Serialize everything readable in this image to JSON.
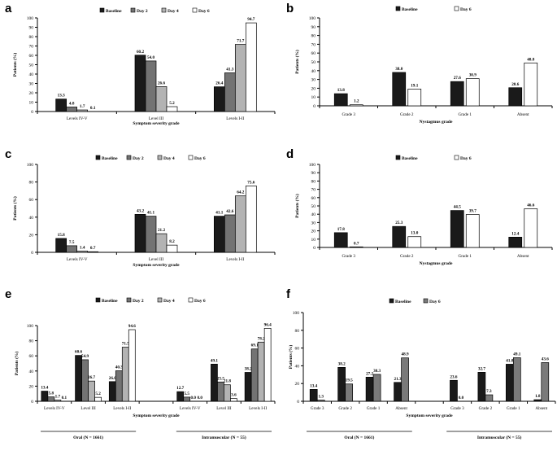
{
  "panels": {
    "a": {
      "label": "a"
    },
    "b": {
      "label": "b"
    },
    "c": {
      "label": "c"
    },
    "d": {
      "label": "d"
    },
    "e": {
      "label": "e"
    },
    "f": {
      "label": "f"
    }
  },
  "colors": {
    "baseline": "#1a1a1a",
    "day2": "#737373",
    "day4": "#b3b3b3",
    "day6": "#ffffff",
    "day6_f": "#7a7a7a"
  },
  "chart_data": [
    {
      "id": "a",
      "type": "bar",
      "ylabel": "Patients (%)",
      "xlabel": "Symptom severity grade",
      "ylim": [
        0,
        100
      ],
      "yticks": [
        0,
        10,
        20,
        30,
        40,
        50,
        60,
        70,
        80,
        90,
        100
      ],
      "legend": [
        "Baseline",
        "Day 2",
        "Day 4",
        "Day 6"
      ],
      "categories": [
        "Levels IV-V",
        "Level III",
        "Levels I-II"
      ],
      "series": [
        {
          "name": "Baseline",
          "values": [
            13.3,
            60.2,
            26.4
          ]
        },
        {
          "name": "Day 2",
          "values": [
            4.8,
            54.0,
            41.3
          ]
        },
        {
          "name": "Day 4",
          "values": [
            1.7,
            26.6,
            71.7
          ]
        },
        {
          "name": "Day 6",
          "values": [
            0.1,
            5.2,
            94.7
          ]
        }
      ]
    },
    {
      "id": "b",
      "type": "bar",
      "ylabel": "Patients (%)",
      "xlabel": "Nystagmus grade",
      "ylim": [
        0,
        100
      ],
      "yticks": [
        0,
        10,
        20,
        30,
        40,
        50,
        60,
        70,
        80,
        90,
        100
      ],
      "legend": [
        "Baseline",
        "Day 6"
      ],
      "categories": [
        "Grade 3",
        "Grade 2",
        "Grade 1",
        "Absent"
      ],
      "series": [
        {
          "name": "Baseline",
          "values": [
            13.8,
            38.0,
            27.6,
            20.6
          ]
        },
        {
          "name": "Day 6",
          "values": [
            1.2,
            19.1,
            30.9,
            48.8
          ]
        }
      ]
    },
    {
      "id": "c",
      "type": "bar",
      "ylabel": "Patients (%)",
      "xlabel": "Symptom severity grade",
      "ylim": [
        0,
        100
      ],
      "yticks": [
        0,
        20,
        40,
        60,
        80,
        100
      ],
      "legend": [
        "Baseline",
        "Day 2",
        "Day 4",
        "Day 6"
      ],
      "categories": [
        "Levels IV-V",
        "Level III",
        "Levels I-II"
      ],
      "series": [
        {
          "name": "Baseline",
          "values": [
            15.8,
            43.2,
            41.1
          ]
        },
        {
          "name": "Day 2",
          "values": [
            7.5,
            41.1,
            42.6
          ]
        },
        {
          "name": "Day 4",
          "values": [
            1.4,
            21.2,
            64.2
          ]
        },
        {
          "name": "Day 6",
          "values": [
            0.7,
            8.2,
            75.6
          ]
        }
      ]
    },
    {
      "id": "d",
      "type": "bar",
      "ylabel": "Patients (%)",
      "xlabel": "Nystagmus grade",
      "ylim": [
        0,
        100
      ],
      "yticks": [
        0,
        10,
        20,
        30,
        40,
        50,
        60,
        70,
        80,
        90,
        100
      ],
      "legend": [
        "Baseline",
        "Day 6"
      ],
      "categories": [
        "Grade 3",
        "Grade 2",
        "Grade 1",
        "Absent"
      ],
      "series": [
        {
          "name": "Baseline",
          "values": [
            17.8,
            25.3,
            44.5,
            12.4
          ]
        },
        {
          "name": "Day 6",
          "values": [
            0.7,
            13.0,
            39.7,
            46.6
          ]
        }
      ]
    },
    {
      "id": "e",
      "type": "bar",
      "ylabel": "Patients (%)",
      "xlabel": "Symptom severity grade",
      "ylim": [
        0,
        100
      ],
      "yticks": [
        0,
        20,
        40,
        60,
        80,
        100
      ],
      "legend": [
        "Baseline",
        "Day 2",
        "Day 4",
        "Day 6"
      ],
      "categories": [
        "Levels IV-V",
        "Level III",
        "Levels I-II",
        "Levels IV-V",
        "Level III",
        "Levels I-II"
      ],
      "groups": [
        "Oral (N = 1661)",
        "Intramuscular (N = 55)"
      ],
      "series": [
        {
          "name": "Baseline",
          "values": [
            13.4,
            60.6,
            26.0,
            12.7,
            49.1,
            38.2
          ]
        },
        {
          "name": "Day 2",
          "values": [
            5.8,
            54.9,
            40.3,
            5.5,
            25.5,
            69.1
          ]
        },
        {
          "name": "Day 4",
          "values": [
            1.7,
            26.7,
            71.5,
            0.0,
            21.8,
            78.2
          ]
        },
        {
          "name": "Day 6",
          "values": [
            0.1,
            5.2,
            94.6,
            0.0,
            3.6,
            96.4
          ]
        }
      ],
      "value_labels": [
        [
          "13.4",
          "60.6",
          "26.0",
          "12.7",
          "49.1",
          "38.2"
        ],
        [
          "5.8",
          "54.9",
          "40.3",
          "5.5",
          "25.5",
          "69.1"
        ],
        [
          "1.7",
          "26.7",
          "71.5",
          "0.0",
          "21.8",
          "78.2"
        ],
        [
          "0.1",
          "5.2",
          "94.6",
          "0.0",
          "3.6",
          "96.4"
        ]
      ]
    },
    {
      "id": "f",
      "type": "bar",
      "ylabel": "Patients (%)",
      "xlabel": "Symptom severity grade",
      "ylim": [
        0,
        100
      ],
      "yticks": [
        0,
        20,
        40,
        60,
        80,
        100
      ],
      "legend": [
        "Baseline",
        "Day 6"
      ],
      "categories": [
        "Grade 3",
        "Grade 2",
        "Grade 1",
        "Absent",
        "Grade 3",
        "Grade 2",
        "Grade 1",
        "Absent"
      ],
      "groups": [
        "Oral (N = 1661)",
        "Intramuscular (N = 55)"
      ],
      "series": [
        {
          "name": "Baseline",
          "values": [
            13.4,
            38.2,
            27.2,
            21.3,
            23.6,
            32.7,
            41.8,
            1.8
          ]
        },
        {
          "name": "Day 6",
          "values": [
            1.3,
            19.5,
            30.3,
            48.9,
            0.0,
            7.3,
            49.1,
            43.6
          ]
        }
      ],
      "value_labels": [
        [
          "13.4",
          "38.2",
          "27.2",
          "21.3",
          "23.6",
          "32.7",
          "41.8",
          "1.8"
        ],
        [
          "1.3",
          "19.5",
          "30.3",
          "48.9",
          "0.0",
          "7.3",
          "49.1",
          "43.6"
        ]
      ]
    }
  ]
}
